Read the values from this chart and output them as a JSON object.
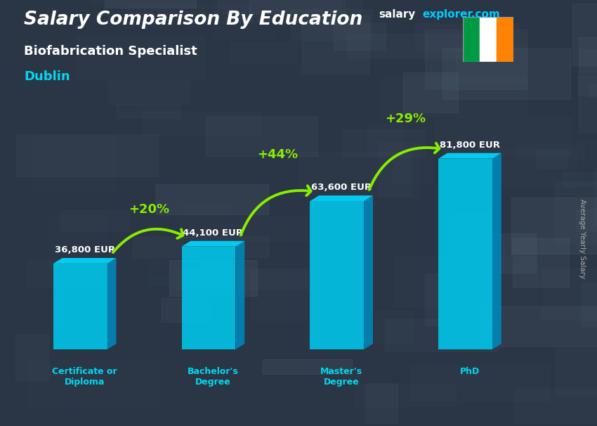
{
  "title": "Salary Comparison By Education",
  "subtitle": "Biofabrication Specialist",
  "location": "Dublin",
  "categories": [
    "Certificate or\nDiploma",
    "Bachelor's\nDegree",
    "Master's\nDegree",
    "PhD"
  ],
  "values": [
    36800,
    44100,
    63600,
    81800
  ],
  "labels": [
    "36,800 EUR",
    "44,100 EUR",
    "63,600 EUR",
    "81,800 EUR"
  ],
  "pct_changes": [
    "+20%",
    "+44%",
    "+29%"
  ],
  "bar_front": "#00c8ed",
  "bar_side": "#0088bb",
  "bar_top": "#00d8ff",
  "bg_color": "#2a3a4a",
  "title_color": "#ffffff",
  "subtitle_color": "#ffffff",
  "location_color": "#00d8f0",
  "label_color": "#ffffff",
  "pct_color": "#88ee00",
  "arrow_color": "#88ee00",
  "site_salary_color": "#ffffff",
  "site_explorer_color": "#00ccff",
  "ylabel": "Average Yearly Salary",
  "ylabel_color": "#aaaaaa",
  "flag_green": "#009A44",
  "flag_white": "#ffffff",
  "flag_orange": "#FF8200",
  "cat_label_color": "#00d8f0"
}
